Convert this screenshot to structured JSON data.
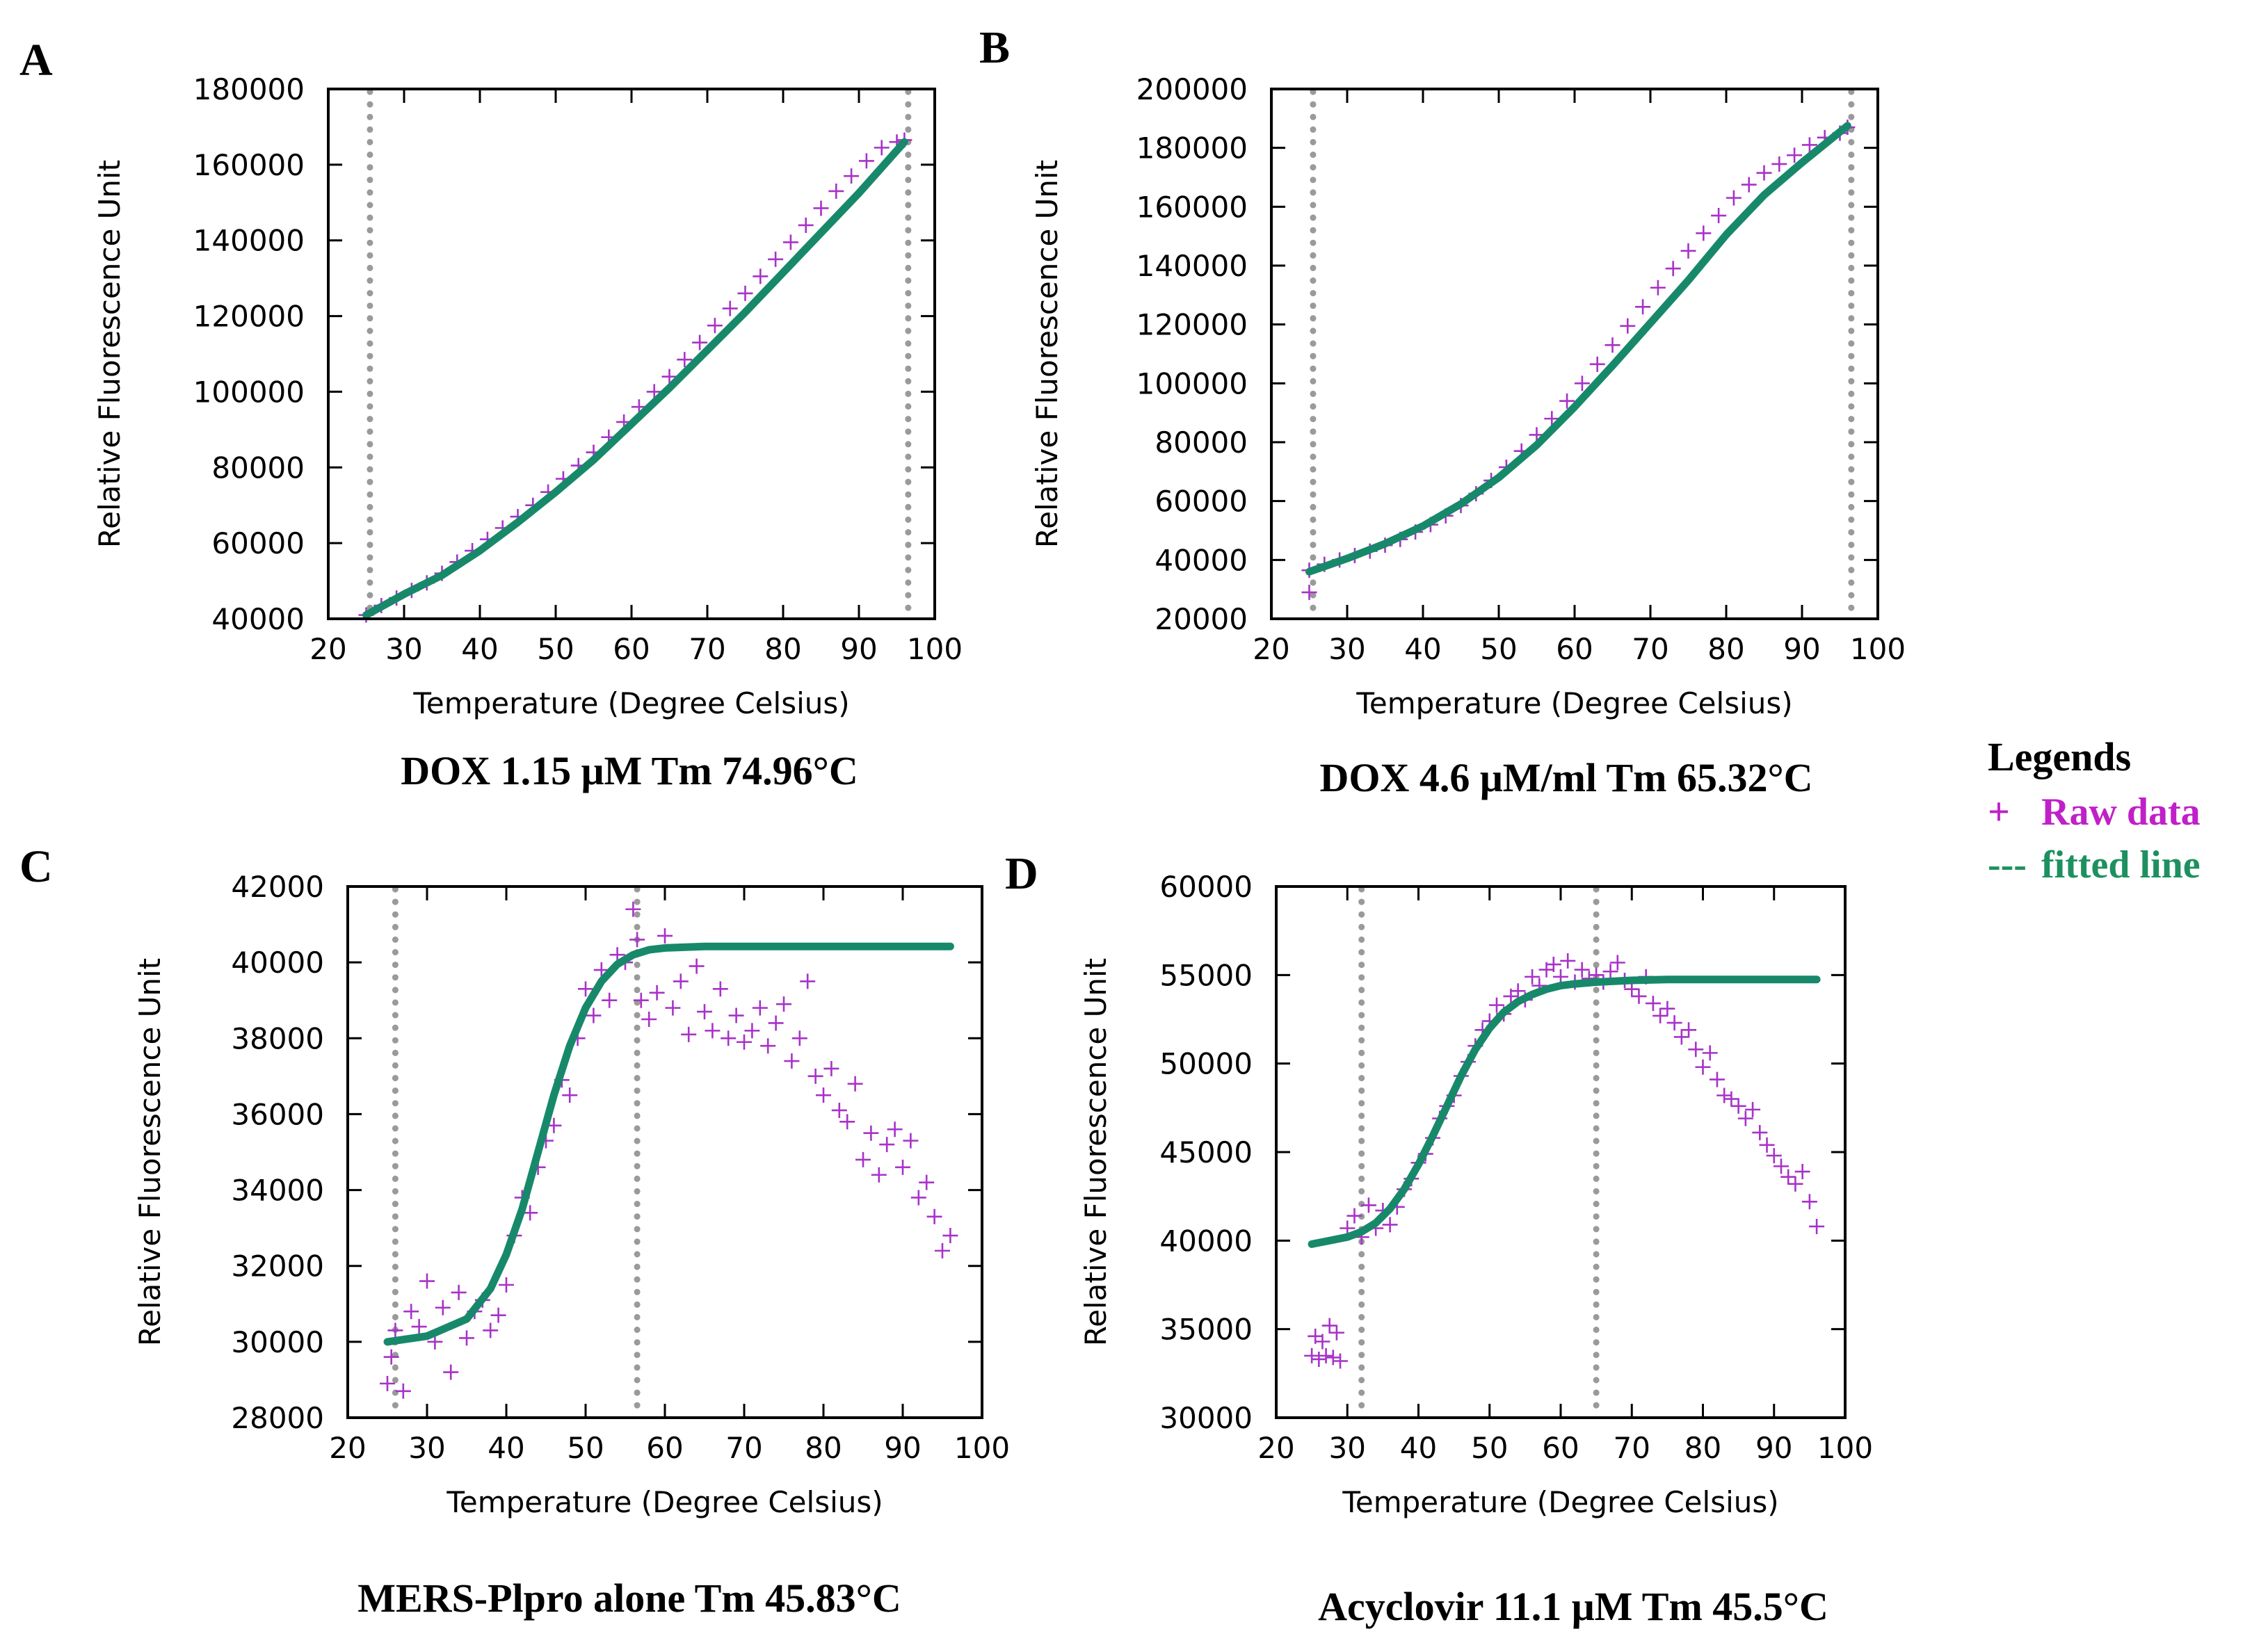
{
  "colors": {
    "raw": "#a832c8",
    "fit": "#17896a",
    "vline": "#9a9a9a",
    "legend_raw": "#c020c8",
    "legend_fit": "#1e9060"
  },
  "legend": {
    "title": "Legends",
    "raw_symbol": "+",
    "raw_label": "Raw data",
    "fit_symbol": "---",
    "fit_label": "fitted line"
  },
  "chart_data": [
    {
      "panel": "A",
      "type": "scatter",
      "caption": "DOX 1.15 μM Tm 74.96°C",
      "xlabel": "Temperature (Degree Celsius)",
      "ylabel": "Relative Fluorescence Unit",
      "xlim": [
        20,
        100
      ],
      "ylim": [
        40000,
        180000
      ],
      "xticks": [
        20,
        30,
        40,
        50,
        60,
        70,
        80,
        90,
        100
      ],
      "yticks": [
        40000,
        60000,
        80000,
        100000,
        120000,
        140000,
        160000,
        180000
      ],
      "vlines": [
        25.5,
        96.5
      ],
      "grid": false,
      "series": [
        {
          "name": "Raw data",
          "kind": "points",
          "x": [
            25,
            27,
            29,
            31,
            33,
            35,
            37,
            39,
            41,
            43,
            45,
            47,
            49,
            51,
            53,
            55,
            57,
            59,
            61,
            63,
            65,
            67,
            69,
            71,
            73,
            75,
            77,
            79,
            81,
            83,
            85,
            87,
            89,
            91,
            93,
            95,
            96
          ],
          "y": [
            41000,
            43500,
            45500,
            47500,
            49500,
            52000,
            55000,
            58000,
            61000,
            64000,
            67000,
            70000,
            73500,
            77000,
            80500,
            84000,
            88000,
            92000,
            96000,
            100000,
            104000,
            108500,
            113000,
            117500,
            122000,
            126000,
            130500,
            135000,
            139500,
            144000,
            148500,
            153000,
            157000,
            161000,
            164500,
            166000,
            166500
          ]
        },
        {
          "name": "fitted line",
          "kind": "line",
          "x": [
            25,
            30,
            35,
            40,
            45,
            50,
            55,
            60,
            65,
            70,
            75,
            80,
            85,
            90,
            96
          ],
          "y": [
            41000,
            46500,
            51500,
            58000,
            65500,
            73500,
            82000,
            91500,
            101000,
            111000,
            121000,
            131500,
            142000,
            152500,
            166000
          ]
        }
      ]
    },
    {
      "panel": "B",
      "type": "scatter",
      "caption": "DOX 4.6 μM/ml Tm 65.32°C",
      "xlabel": "Temperature (Degree Celsius)",
      "ylabel": "Relative Fluorescence Unit",
      "xlim": [
        20,
        100
      ],
      "ylim": [
        20000,
        200000
      ],
      "xticks": [
        20,
        30,
        40,
        50,
        60,
        70,
        80,
        90,
        100
      ],
      "yticks": [
        20000,
        40000,
        60000,
        80000,
        100000,
        120000,
        140000,
        160000,
        180000,
        200000
      ],
      "vlines": [
        25.5,
        96.5
      ],
      "grid": false,
      "series": [
        {
          "name": "Raw data",
          "kind": "points",
          "x": [
            25,
            25,
            27,
            29,
            31,
            33,
            35,
            37,
            39,
            41,
            43,
            45,
            47,
            49,
            51,
            53,
            55,
            57,
            59,
            61,
            63,
            65,
            67,
            69,
            71,
            73,
            75,
            77,
            79,
            81,
            83,
            85,
            87,
            89,
            91,
            93,
            95,
            96
          ],
          "y": [
            29000,
            36500,
            38500,
            40000,
            41500,
            43000,
            45000,
            47000,
            49500,
            52000,
            55000,
            58500,
            62500,
            67000,
            71500,
            77000,
            82500,
            88000,
            94000,
            100000,
            106500,
            113000,
            119500,
            126000,
            132500,
            139000,
            145000,
            151000,
            157000,
            163000,
            167500,
            171500,
            174500,
            177500,
            181000,
            183500,
            185000,
            187000
          ]
        },
        {
          "name": "fitted line",
          "kind": "line",
          "x": [
            25,
            30,
            35,
            40,
            45,
            50,
            55,
            60,
            65,
            70,
            75,
            80,
            85,
            90,
            96
          ],
          "y": [
            36000,
            40500,
            45500,
            51500,
            59000,
            68000,
            79000,
            92000,
            106000,
            120500,
            135000,
            150500,
            164000,
            175000,
            187500
          ]
        }
      ]
    },
    {
      "panel": "C",
      "type": "scatter",
      "caption": "MERS-Plpro alone Tm 45.83°C",
      "xlabel": "Temperature (Degree Celsius)",
      "ylabel": "Relative Fluorescence Unit",
      "xlim": [
        20,
        100
      ],
      "ylim": [
        28000,
        42000
      ],
      "xticks": [
        20,
        30,
        40,
        50,
        60,
        70,
        80,
        90,
        100
      ],
      "yticks": [
        28000,
        30000,
        32000,
        34000,
        36000,
        38000,
        40000,
        42000
      ],
      "vlines": [
        26,
        56.5
      ],
      "grid": false,
      "series": [
        {
          "name": "Raw data",
          "kind": "points",
          "x": [
            25,
            25.5,
            26,
            27,
            28,
            29,
            30,
            31,
            32,
            33,
            34,
            35,
            36,
            37,
            38,
            39,
            40,
            41,
            42,
            43,
            44,
            45,
            46,
            47,
            48,
            49,
            50,
            51,
            52,
            53,
            54,
            55,
            56,
            56.5,
            57,
            58,
            59,
            60,
            61,
            62,
            63,
            64,
            65,
            66,
            67,
            68,
            69,
            70,
            71,
            72,
            73,
            74,
            75,
            76,
            77,
            78,
            79,
            80,
            81,
            82,
            83,
            84,
            85,
            86,
            87,
            88,
            89,
            90,
            91,
            92,
            93,
            94,
            95,
            96
          ],
          "y": [
            28900,
            29600,
            30300,
            28700,
            30800,
            30400,
            31600,
            30000,
            30900,
            29200,
            31300,
            30100,
            30800,
            31100,
            30300,
            30700,
            31500,
            32800,
            33800,
            33400,
            34600,
            35300,
            35700,
            36900,
            36500,
            38000,
            39300,
            38600,
            39800,
            39000,
            40200,
            40000,
            41400,
            40600,
            39000,
            38500,
            39200,
            40700,
            38800,
            39500,
            38100,
            39900,
            38700,
            38200,
            39300,
            38000,
            38600,
            37900,
            38200,
            38800,
            37800,
            38400,
            38900,
            37400,
            38000,
            39500,
            37000,
            36500,
            37200,
            36100,
            35800,
            36800,
            34800,
            35500,
            34400,
            35200,
            35600,
            34600,
            35300,
            33800,
            34200,
            33300,
            32400,
            32800
          ]
        },
        {
          "name": "fitted line",
          "kind": "line",
          "x": [
            25,
            30,
            35,
            38,
            40,
            42,
            44,
            46,
            48,
            50,
            52,
            54,
            56,
            58,
            60,
            65,
            70,
            75,
            80,
            85,
            90,
            96
          ],
          "y": [
            30000,
            30150,
            30600,
            31400,
            32300,
            33500,
            35000,
            36500,
            37800,
            38800,
            39500,
            39950,
            40200,
            40330,
            40380,
            40420,
            40420,
            40420,
            40420,
            40420,
            40420,
            40420
          ]
        }
      ]
    },
    {
      "panel": "D",
      "type": "scatter",
      "caption": "Acyclovir  11.1 μM Tm 45.5°C",
      "xlabel": "Temperature (Degree Celsius)",
      "ylabel": "Relative Fluorescence Unit",
      "xlim": [
        20,
        100
      ],
      "ylim": [
        30000,
        60000
      ],
      "xticks": [
        20,
        30,
        40,
        50,
        60,
        70,
        80,
        90,
        100
      ],
      "yticks": [
        30000,
        35000,
        40000,
        45000,
        50000,
        55000,
        60000
      ],
      "vlines": [
        32,
        65
      ],
      "grid": false,
      "series": [
        {
          "name": "Raw data",
          "kind": "points",
          "x": [
            25,
            25.5,
            26,
            26.5,
            27,
            27.5,
            28,
            28.5,
            29,
            30,
            31,
            32,
            33,
            34,
            35,
            36,
            37,
            38,
            39,
            40,
            41,
            42,
            43,
            44,
            45,
            46,
            47,
            48,
            49,
            50,
            51,
            52,
            53,
            54,
            55,
            56,
            57,
            58,
            59,
            60,
            61,
            62,
            63,
            64,
            65,
            66,
            67,
            68,
            69,
            70,
            71,
            72,
            73,
            74,
            75,
            76,
            77,
            78,
            79,
            80,
            81,
            82,
            83,
            84,
            85,
            86,
            87,
            88,
            89,
            90,
            91,
            92,
            93,
            94,
            95,
            96
          ],
          "y": [
            33500,
            34600,
            33300,
            34300,
            33500,
            35200,
            33400,
            34800,
            33200,
            40700,
            41400,
            40200,
            42000,
            40700,
            41700,
            40900,
            41900,
            42900,
            43500,
            44400,
            44900,
            45800,
            46900,
            47600,
            48200,
            49300,
            50100,
            51000,
            51900,
            52400,
            53300,
            52800,
            53800,
            54100,
            53600,
            54900,
            54400,
            55300,
            55600,
            54900,
            55800,
            54600,
            55300,
            54800,
            55000,
            54600,
            55200,
            55700,
            54700,
            54200,
            53800,
            54900,
            53400,
            52700,
            53100,
            52300,
            51500,
            51900,
            50800,
            49800,
            50600,
            49100,
            48200,
            48000,
            47600,
            46900,
            47400,
            46100,
            45400,
            44800,
            44200,
            43600,
            43200,
            43900,
            42200,
            40800
          ]
        },
        {
          "name": "fitted line",
          "kind": "line",
          "x": [
            25,
            30,
            32,
            34,
            36,
            38,
            40,
            42,
            44,
            46,
            48,
            50,
            52,
            54,
            56,
            58,
            60,
            62,
            65,
            70,
            75,
            80,
            85,
            90,
            96
          ],
          "y": [
            39800,
            40200,
            40500,
            41000,
            41800,
            42900,
            44300,
            45900,
            47600,
            49300,
            50800,
            52000,
            52900,
            53500,
            53900,
            54200,
            54400,
            54500,
            54600,
            54700,
            54750,
            54750,
            54750,
            54750,
            54750
          ]
        }
      ]
    }
  ]
}
